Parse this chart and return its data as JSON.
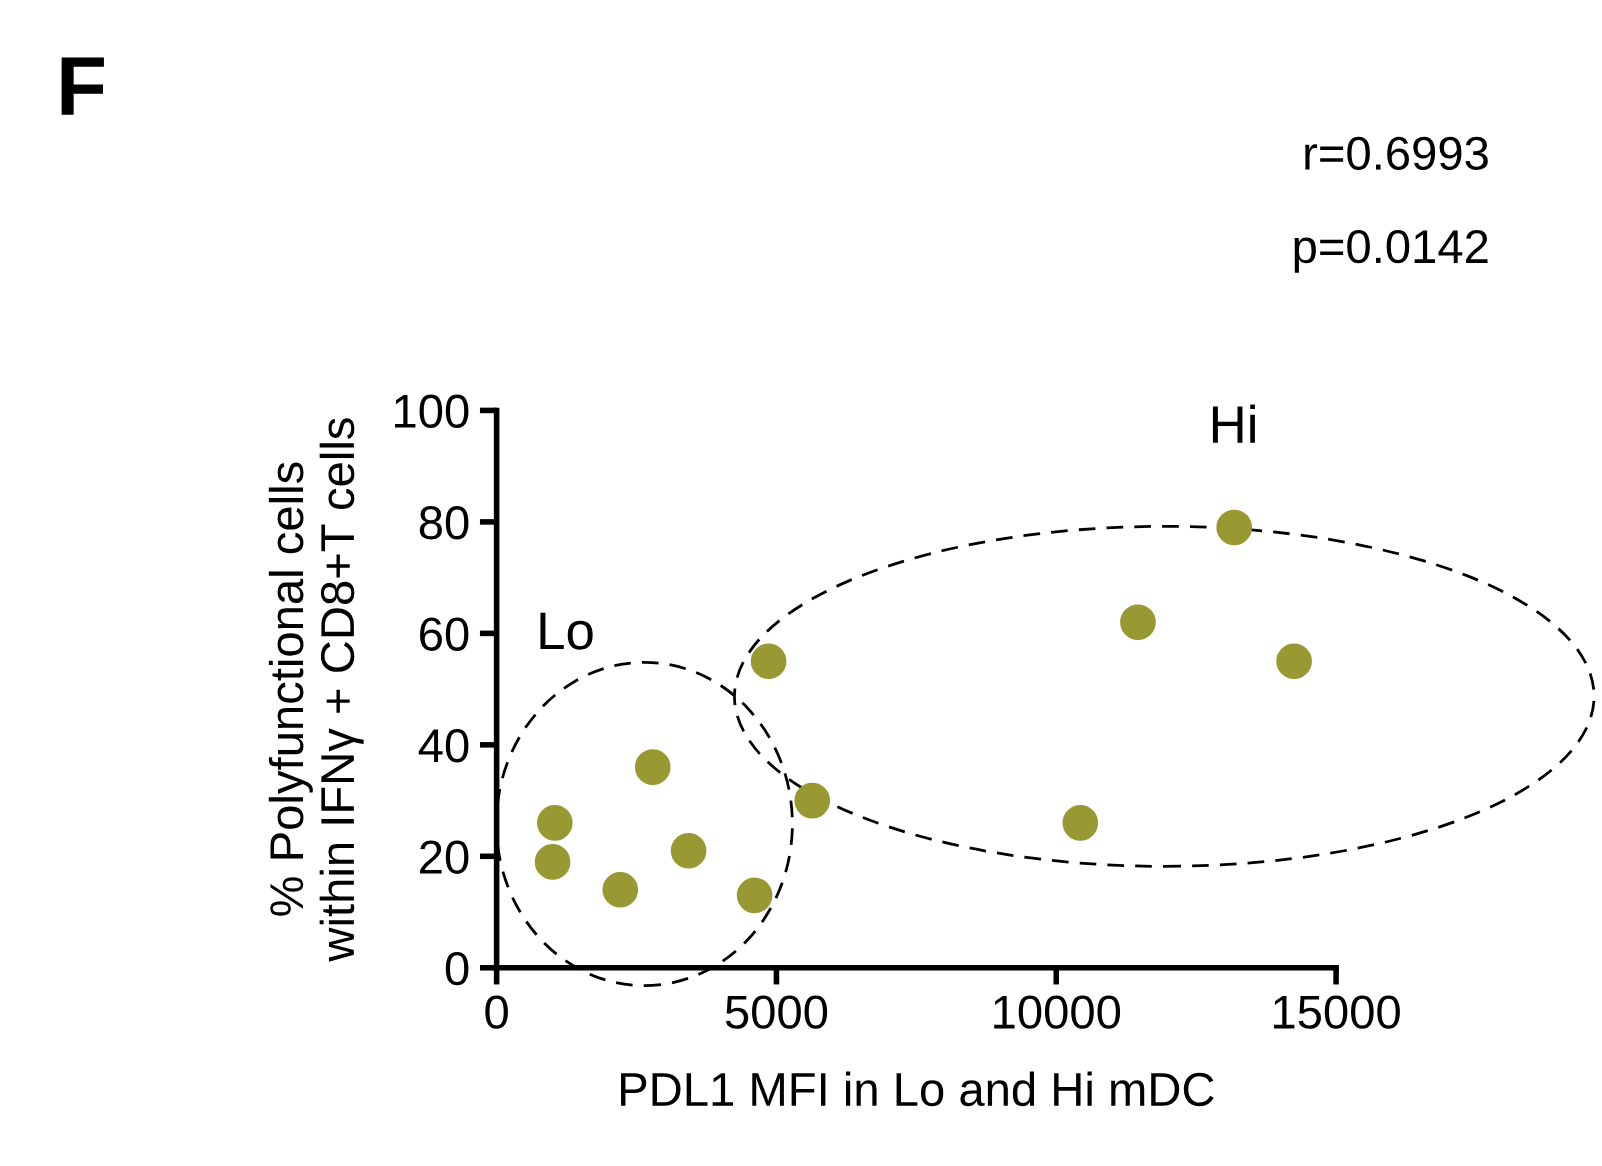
{
  "chart_data": {
    "type": "scatter",
    "xlabel": "PDL1 MFI in Lo and Hi mDC",
    "ylabel": "% Polyfunctional cells\nwithin IFNγ + CD8+T cells",
    "x": [
      1040,
      1000,
      2210,
      2790,
      3430,
      4610,
      4860,
      5640,
      10430,
      11460,
      13180,
      14250
    ],
    "series": [
      {
        "color": "#999933",
        "values": [
          26,
          19,
          14,
          36,
          21,
          13,
          55,
          30,
          26,
          62,
          79,
          55
        ]
      }
    ],
    "xlim": [
      0,
      15000
    ],
    "xticks": [
      0,
      5000,
      10000,
      15000
    ],
    "ylim": [
      0,
      100
    ],
    "yticks": [
      0,
      20,
      40,
      60,
      80,
      100
    ],
    "marker": "circle",
    "grid": false,
    "legend": false,
    "annotations": [
      "F",
      "r=0.6993",
      "p=0.0142",
      "Lo",
      "Hi"
    ]
  }
}
